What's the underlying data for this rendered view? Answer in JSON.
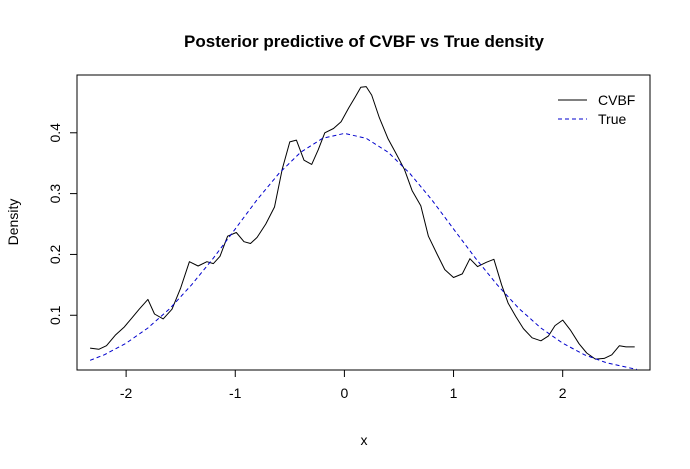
{
  "chart_data": {
    "type": "line",
    "title": "Posterior predictive of CVBF vs True density",
    "xlabel": "x",
    "ylabel": "Density",
    "xlim": [
      -2.45,
      2.8
    ],
    "ylim": [
      0.01,
      0.495
    ],
    "xticks": [
      -2,
      -1,
      0,
      1,
      2
    ],
    "yticks": [
      0.1,
      0.2,
      0.3,
      0.4
    ],
    "xtick_labels": [
      "-2",
      "-1",
      "0",
      "1",
      "2"
    ],
    "ytick_labels": [
      "0.1",
      "0.2",
      "0.3",
      "0.4"
    ],
    "legend": {
      "position": "top-right",
      "entries": [
        {
          "label": "CVBF",
          "color": "#000000",
          "style": "solid"
        },
        {
          "label": "True",
          "color": "#0000cc",
          "style": "dashed"
        }
      ]
    },
    "series": [
      {
        "name": "CVBF",
        "color": "#000000",
        "style": "solid",
        "x": [
          -2.33,
          -2.25,
          -2.18,
          -2.1,
          -2.02,
          -1.95,
          -1.88,
          -1.8,
          -1.74,
          -1.66,
          -1.58,
          -1.5,
          -1.42,
          -1.34,
          -1.26,
          -1.2,
          -1.14,
          -1.07,
          -0.99,
          -0.92,
          -0.86,
          -0.8,
          -0.72,
          -0.64,
          -0.57,
          -0.5,
          -0.44,
          -0.37,
          -0.3,
          -0.24,
          -0.18,
          -0.1,
          -0.03,
          0.04,
          0.1,
          0.15,
          0.2,
          0.25,
          0.32,
          0.4,
          0.47,
          0.55,
          0.62,
          0.7,
          0.77,
          0.85,
          0.92,
          1.0,
          1.08,
          1.15,
          1.22,
          1.3,
          1.37,
          1.44,
          1.5,
          1.57,
          1.64,
          1.72,
          1.8,
          1.87,
          1.93,
          2.0,
          2.07,
          2.15,
          2.22,
          2.3,
          2.38,
          2.45,
          2.52,
          2.58,
          2.66
        ],
        "y": [
          0.046,
          0.044,
          0.05,
          0.067,
          0.08,
          0.095,
          0.11,
          0.126,
          0.102,
          0.094,
          0.11,
          0.145,
          0.188,
          0.181,
          0.188,
          0.185,
          0.197,
          0.23,
          0.236,
          0.221,
          0.218,
          0.228,
          0.25,
          0.278,
          0.34,
          0.385,
          0.388,
          0.355,
          0.348,
          0.372,
          0.4,
          0.407,
          0.418,
          0.441,
          0.459,
          0.475,
          0.476,
          0.462,
          0.425,
          0.39,
          0.367,
          0.34,
          0.305,
          0.28,
          0.23,
          0.2,
          0.175,
          0.162,
          0.168,
          0.193,
          0.18,
          0.187,
          0.192,
          0.15,
          0.12,
          0.098,
          0.078,
          0.063,
          0.058,
          0.066,
          0.083,
          0.092,
          0.076,
          0.053,
          0.038,
          0.028,
          0.029,
          0.035,
          0.05,
          0.048,
          0.048
        ]
      },
      {
        "name": "True",
        "color": "#0000cc",
        "style": "dashed",
        "x": [
          -2.33,
          -2.2,
          -2.0,
          -1.8,
          -1.6,
          -1.4,
          -1.2,
          -1.0,
          -0.8,
          -0.6,
          -0.4,
          -0.2,
          0.0,
          0.2,
          0.4,
          0.6,
          0.8,
          1.0,
          1.2,
          1.4,
          1.6,
          1.8,
          2.0,
          2.2,
          2.4,
          2.6,
          2.68
        ],
        "y": [
          0.026,
          0.035,
          0.054,
          0.079,
          0.111,
          0.15,
          0.194,
          0.242,
          0.29,
          0.333,
          0.368,
          0.391,
          0.399,
          0.391,
          0.368,
          0.333,
          0.29,
          0.242,
          0.194,
          0.15,
          0.111,
          0.079,
          0.054,
          0.035,
          0.022,
          0.014,
          0.011
        ]
      }
    ]
  }
}
